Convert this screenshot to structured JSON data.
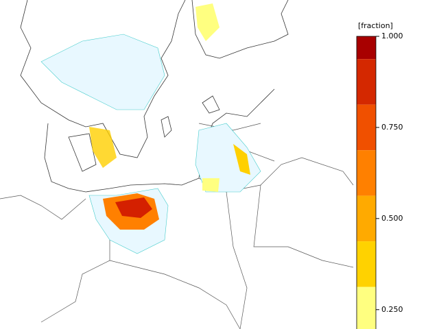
{
  "colorbar": {
    "title": "[fraction]",
    "lim": [
      0.1875,
      1.0
    ],
    "bands": [
      {
        "from": 0.9375,
        "to": 1.0,
        "color": "#a80000"
      },
      {
        "from": 0.8125,
        "to": 0.9375,
        "color": "#d42800"
      },
      {
        "from": 0.6875,
        "to": 0.8125,
        "color": "#f05000"
      },
      {
        "from": 0.5625,
        "to": 0.6875,
        "color": "#ff8000"
      },
      {
        "from": 0.4375,
        "to": 0.5625,
        "color": "#ffaa00"
      },
      {
        "from": 0.3125,
        "to": 0.4375,
        "color": "#ffd200"
      },
      {
        "from": 0.1875,
        "to": 0.3125,
        "color": "#ffff80"
      }
    ],
    "ticks": [
      {
        "value": 1.0,
        "label": "1.000"
      },
      {
        "value": 0.75,
        "label": "0.750"
      },
      {
        "value": 0.5,
        "label": "0.500"
      },
      {
        "value": 0.25,
        "label": "0.250"
      }
    ]
  }
}
